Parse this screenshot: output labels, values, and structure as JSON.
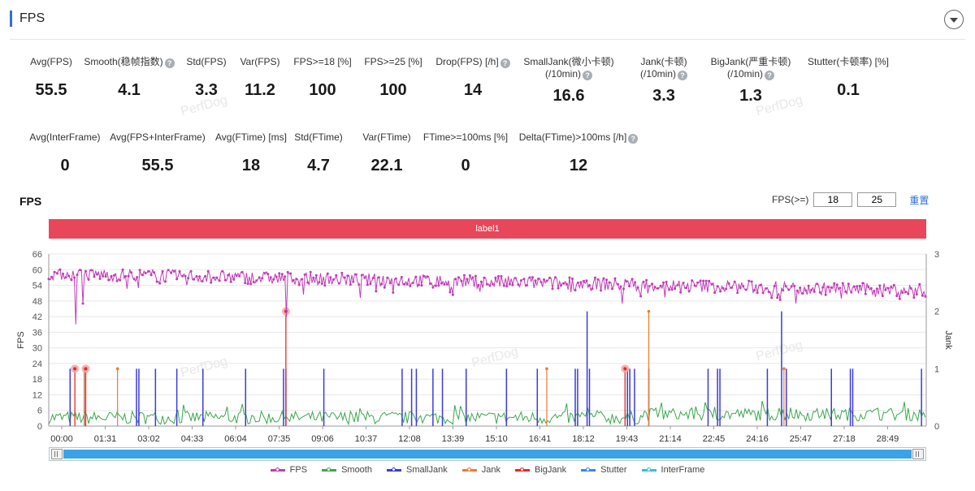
{
  "header": {
    "title": "FPS"
  },
  "metrics_row1": [
    {
      "label": "Avg(FPS)",
      "value": "55.5",
      "help": false
    },
    {
      "label": "Smooth(稳帧指数)",
      "value": "4.1",
      "help": true
    },
    {
      "label": "Std(FPS)",
      "value": "3.3",
      "help": false
    },
    {
      "label": "Var(FPS)",
      "value": "11.2",
      "help": false
    },
    {
      "label": "FPS>=18 [%]",
      "value": "100",
      "help": false
    },
    {
      "label": "FPS>=25 [%]",
      "value": "100",
      "help": false
    },
    {
      "label": "Drop(FPS) [/h]",
      "value": "14",
      "help": true
    },
    {
      "label": "SmallJank(微小卡顿)",
      "label2": "(/10min)",
      "value": "16.6",
      "help": true
    },
    {
      "label": "Jank(卡顿)",
      "label2": "(/10min)",
      "value": "3.3",
      "help": true
    },
    {
      "label": "BigJank(严重卡顿)",
      "label2": "(/10min)",
      "value": "1.3",
      "help": true
    },
    {
      "label": "Stutter(卡顿率) [%]",
      "value": "0.1",
      "help": false
    }
  ],
  "metrics_row2": [
    {
      "label": "Avg(InterFrame)",
      "value": "0",
      "help": false
    },
    {
      "label": "Avg(FPS+InterFrame)",
      "value": "55.5",
      "help": false
    },
    {
      "label": "Avg(FTime) [ms]",
      "value": "18",
      "help": false
    },
    {
      "label": "Std(FTime)",
      "value": "4.7",
      "help": false
    },
    {
      "label": "Var(FTime)",
      "value": "22.1",
      "help": false
    },
    {
      "label": "FTime>=100ms [%]",
      "value": "0",
      "help": false
    },
    {
      "label": "Delta(FTime)>100ms [/h]",
      "value": "12",
      "help": true
    }
  ],
  "watermark": "PerfDog",
  "chart_section": {
    "title": "FPS",
    "fps_threshold_label": "FPS(>=)",
    "threshold_low": "18",
    "threshold_high": "25",
    "reset_label": "重置",
    "label_bar": "label1"
  },
  "chart_data": {
    "type": "line",
    "title": "FPS",
    "ylabel": "FPS",
    "y2label": "Jank",
    "ylim": [
      0,
      66
    ],
    "y2lim": [
      0,
      3
    ],
    "yticks": [
      "0",
      "6",
      "12",
      "18",
      "24",
      "30",
      "36",
      "42",
      "48",
      "54",
      "60",
      "66"
    ],
    "y2ticks": [
      "0",
      "1",
      "2",
      "3"
    ],
    "x_range_seconds": [
      0,
      1850
    ],
    "xticks": [
      "00:00",
      "01:31",
      "03:02",
      "04:33",
      "06:04",
      "07:35",
      "09:06",
      "10:37",
      "12:08",
      "13:39",
      "15:10",
      "16:41",
      "18:12",
      "19:43",
      "21:14",
      "22:45",
      "24:16",
      "25:47",
      "27:18",
      "28:49"
    ],
    "series": [
      {
        "name": "FPS",
        "color": "#c23bb8",
        "axis": "left",
        "note": "approx 58 declining to 52, sampled per second",
        "mean_start": 58.5,
        "mean_end": 52,
        "dips": [
          {
            "t": 57,
            "v": 39
          },
          {
            "t": 72,
            "v": 47
          },
          {
            "t": 500,
            "v": 42
          },
          {
            "t": 1210,
            "v": 47
          },
          {
            "t": 1575,
            "v": 47
          }
        ]
      },
      {
        "name": "Smooth",
        "color": "#3aa84a",
        "axis": "left",
        "note": "low noisy line approx 2-7"
      },
      {
        "name": "SmallJank",
        "color": "#3b3bd8",
        "axis": "right",
        "t": [
          45,
          75,
          185,
          190,
          225,
          270,
          325,
          415,
          495,
          500,
          580,
          745,
          765,
          775,
          810,
          830,
          880,
          965,
          1030,
          1110,
          1115,
          1135,
          1140,
          1220,
          1225,
          1235,
          1265,
          1390,
          1410,
          1415,
          1515,
          1545,
          1555,
          1650,
          1690,
          1695,
          1840
        ],
        "v": [
          1,
          1,
          1,
          1,
          1,
          1,
          1,
          1,
          1,
          1,
          1,
          1,
          1,
          1,
          1,
          1,
          1,
          1,
          1,
          1,
          1,
          2,
          1,
          1,
          1,
          1,
          1,
          1,
          1,
          1,
          1,
          2,
          1,
          1,
          1,
          1,
          1
        ]
      },
      {
        "name": "Jank",
        "color": "#f07a30",
        "axis": "right",
        "t": [
          55,
          75,
          145,
          500,
          1050,
          1215,
          1265,
          1550
        ],
        "v": [
          1,
          1,
          1,
          2,
          1,
          1,
          2,
          1
        ]
      },
      {
        "name": "BigJank",
        "color": "#e02a2a",
        "axis": "right",
        "t": [
          55,
          78,
          500,
          1215
        ],
        "v": [
          1,
          1,
          2,
          1
        ]
      },
      {
        "name": "Stutter",
        "color": "#3b86e8",
        "axis": "right"
      },
      {
        "name": "InterFrame",
        "color": "#2fc3d8",
        "axis": "right"
      }
    ],
    "legend_position": "bottom"
  }
}
